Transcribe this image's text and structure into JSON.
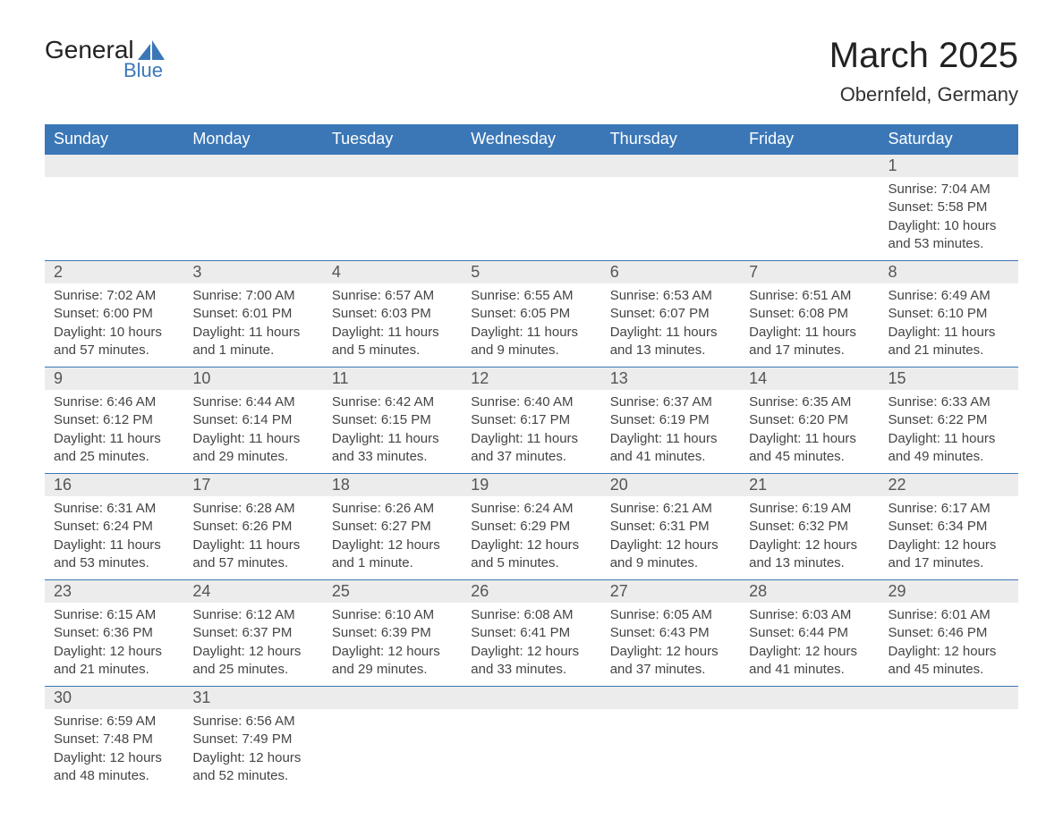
{
  "logo": {
    "text_top": "General",
    "text_bottom": "Blue",
    "accent_color": "#3b77b7"
  },
  "title": "March 2025",
  "location": "Obernfeld, Germany",
  "colors": {
    "header_bg": "#3b77b7",
    "header_text": "#ffffff",
    "daynum_bg": "#ececec",
    "cell_border": "#3b77b7",
    "body_text": "#444444"
  },
  "weekdays": [
    "Sunday",
    "Monday",
    "Tuesday",
    "Wednesday",
    "Thursday",
    "Friday",
    "Saturday"
  ],
  "weeks": [
    {
      "days": [
        null,
        null,
        null,
        null,
        null,
        null,
        {
          "n": "1",
          "sunrise": "Sunrise: 7:04 AM",
          "sunset": "Sunset: 5:58 PM",
          "daylight": "Daylight: 10 hours and 53 minutes."
        }
      ]
    },
    {
      "days": [
        {
          "n": "2",
          "sunrise": "Sunrise: 7:02 AM",
          "sunset": "Sunset: 6:00 PM",
          "daylight": "Daylight: 10 hours and 57 minutes."
        },
        {
          "n": "3",
          "sunrise": "Sunrise: 7:00 AM",
          "sunset": "Sunset: 6:01 PM",
          "daylight": "Daylight: 11 hours and 1 minute."
        },
        {
          "n": "4",
          "sunrise": "Sunrise: 6:57 AM",
          "sunset": "Sunset: 6:03 PM",
          "daylight": "Daylight: 11 hours and 5 minutes."
        },
        {
          "n": "5",
          "sunrise": "Sunrise: 6:55 AM",
          "sunset": "Sunset: 6:05 PM",
          "daylight": "Daylight: 11 hours and 9 minutes."
        },
        {
          "n": "6",
          "sunrise": "Sunrise: 6:53 AM",
          "sunset": "Sunset: 6:07 PM",
          "daylight": "Daylight: 11 hours and 13 minutes."
        },
        {
          "n": "7",
          "sunrise": "Sunrise: 6:51 AM",
          "sunset": "Sunset: 6:08 PM",
          "daylight": "Daylight: 11 hours and 17 minutes."
        },
        {
          "n": "8",
          "sunrise": "Sunrise: 6:49 AM",
          "sunset": "Sunset: 6:10 PM",
          "daylight": "Daylight: 11 hours and 21 minutes."
        }
      ]
    },
    {
      "days": [
        {
          "n": "9",
          "sunrise": "Sunrise: 6:46 AM",
          "sunset": "Sunset: 6:12 PM",
          "daylight": "Daylight: 11 hours and 25 minutes."
        },
        {
          "n": "10",
          "sunrise": "Sunrise: 6:44 AM",
          "sunset": "Sunset: 6:14 PM",
          "daylight": "Daylight: 11 hours and 29 minutes."
        },
        {
          "n": "11",
          "sunrise": "Sunrise: 6:42 AM",
          "sunset": "Sunset: 6:15 PM",
          "daylight": "Daylight: 11 hours and 33 minutes."
        },
        {
          "n": "12",
          "sunrise": "Sunrise: 6:40 AM",
          "sunset": "Sunset: 6:17 PM",
          "daylight": "Daylight: 11 hours and 37 minutes."
        },
        {
          "n": "13",
          "sunrise": "Sunrise: 6:37 AM",
          "sunset": "Sunset: 6:19 PM",
          "daylight": "Daylight: 11 hours and 41 minutes."
        },
        {
          "n": "14",
          "sunrise": "Sunrise: 6:35 AM",
          "sunset": "Sunset: 6:20 PM",
          "daylight": "Daylight: 11 hours and 45 minutes."
        },
        {
          "n": "15",
          "sunrise": "Sunrise: 6:33 AM",
          "sunset": "Sunset: 6:22 PM",
          "daylight": "Daylight: 11 hours and 49 minutes."
        }
      ]
    },
    {
      "days": [
        {
          "n": "16",
          "sunrise": "Sunrise: 6:31 AM",
          "sunset": "Sunset: 6:24 PM",
          "daylight": "Daylight: 11 hours and 53 minutes."
        },
        {
          "n": "17",
          "sunrise": "Sunrise: 6:28 AM",
          "sunset": "Sunset: 6:26 PM",
          "daylight": "Daylight: 11 hours and 57 minutes."
        },
        {
          "n": "18",
          "sunrise": "Sunrise: 6:26 AM",
          "sunset": "Sunset: 6:27 PM",
          "daylight": "Daylight: 12 hours and 1 minute."
        },
        {
          "n": "19",
          "sunrise": "Sunrise: 6:24 AM",
          "sunset": "Sunset: 6:29 PM",
          "daylight": "Daylight: 12 hours and 5 minutes."
        },
        {
          "n": "20",
          "sunrise": "Sunrise: 6:21 AM",
          "sunset": "Sunset: 6:31 PM",
          "daylight": "Daylight: 12 hours and 9 minutes."
        },
        {
          "n": "21",
          "sunrise": "Sunrise: 6:19 AM",
          "sunset": "Sunset: 6:32 PM",
          "daylight": "Daylight: 12 hours and 13 minutes."
        },
        {
          "n": "22",
          "sunrise": "Sunrise: 6:17 AM",
          "sunset": "Sunset: 6:34 PM",
          "daylight": "Daylight: 12 hours and 17 minutes."
        }
      ]
    },
    {
      "days": [
        {
          "n": "23",
          "sunrise": "Sunrise: 6:15 AM",
          "sunset": "Sunset: 6:36 PM",
          "daylight": "Daylight: 12 hours and 21 minutes."
        },
        {
          "n": "24",
          "sunrise": "Sunrise: 6:12 AM",
          "sunset": "Sunset: 6:37 PM",
          "daylight": "Daylight: 12 hours and 25 minutes."
        },
        {
          "n": "25",
          "sunrise": "Sunrise: 6:10 AM",
          "sunset": "Sunset: 6:39 PM",
          "daylight": "Daylight: 12 hours and 29 minutes."
        },
        {
          "n": "26",
          "sunrise": "Sunrise: 6:08 AM",
          "sunset": "Sunset: 6:41 PM",
          "daylight": "Daylight: 12 hours and 33 minutes."
        },
        {
          "n": "27",
          "sunrise": "Sunrise: 6:05 AM",
          "sunset": "Sunset: 6:43 PM",
          "daylight": "Daylight: 12 hours and 37 minutes."
        },
        {
          "n": "28",
          "sunrise": "Sunrise: 6:03 AM",
          "sunset": "Sunset: 6:44 PM",
          "daylight": "Daylight: 12 hours and 41 minutes."
        },
        {
          "n": "29",
          "sunrise": "Sunrise: 6:01 AM",
          "sunset": "Sunset: 6:46 PM",
          "daylight": "Daylight: 12 hours and 45 minutes."
        }
      ]
    },
    {
      "days": [
        {
          "n": "30",
          "sunrise": "Sunrise: 6:59 AM",
          "sunset": "Sunset: 7:48 PM",
          "daylight": "Daylight: 12 hours and 48 minutes."
        },
        {
          "n": "31",
          "sunrise": "Sunrise: 6:56 AM",
          "sunset": "Sunset: 7:49 PM",
          "daylight": "Daylight: 12 hours and 52 minutes."
        },
        null,
        null,
        null,
        null,
        null
      ]
    }
  ]
}
